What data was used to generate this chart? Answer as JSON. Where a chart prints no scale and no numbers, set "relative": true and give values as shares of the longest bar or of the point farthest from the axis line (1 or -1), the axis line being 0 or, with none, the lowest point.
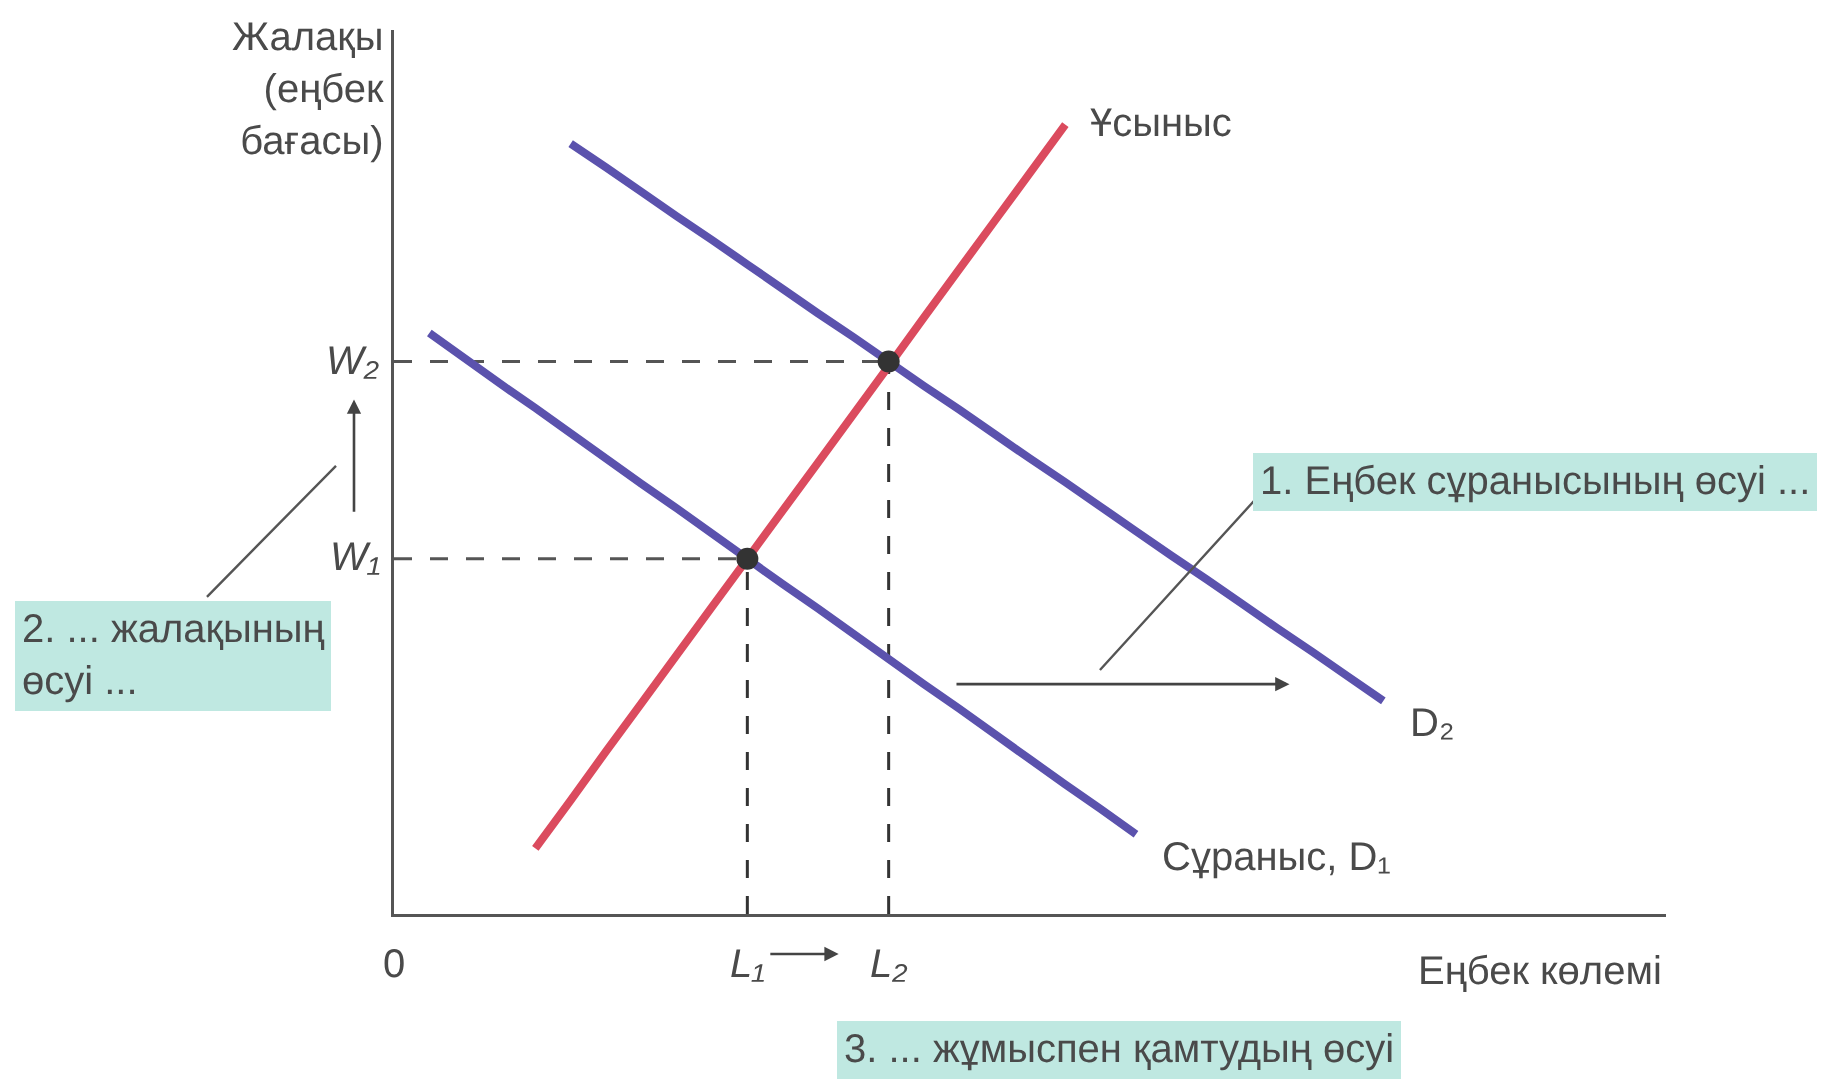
{
  "chart_data": {
    "type": "line",
    "relative": true,
    "legend": false,
    "xlabel": "Еңбек көлемі",
    "ylabel": "Жалақы\n(еңбек\nбағасы)",
    "categories": [
      "0",
      null,
      null,
      null,
      null,
      null,
      null,
      null,
      null,
      null,
      "L₁",
      null,
      null,
      null,
      "L₂",
      null,
      null,
      null,
      null,
      null,
      null,
      null,
      null,
      null,
      null,
      null,
      null,
      null,
      null,
      null,
      null,
      null,
      null,
      null,
      null,
      null,
      null
    ],
    "series": [
      {
        "name": "Ұсыныс",
        "color": "#db4b5e",
        "values": [
          null,
          null,
          null,
          null,
          0.083,
          0.144,
          0.206,
          0.267,
          0.328,
          0.389,
          0.45,
          0.511,
          0.572,
          0.633,
          0.694,
          0.756,
          0.817,
          0.878,
          0.939,
          1.0,
          null,
          null,
          null,
          null,
          null,
          null,
          null,
          null,
          null,
          null,
          null,
          null,
          null,
          null,
          null,
          null,
          null
        ]
      },
      {
        "name": "Сұраныс, D₁",
        "color": "#5b52ad",
        "values": [
          null,
          0.736,
          0.704,
          0.672,
          0.641,
          0.609,
          0.577,
          0.545,
          0.514,
          0.482,
          0.45,
          0.418,
          0.387,
          0.355,
          0.323,
          0.291,
          0.26,
          0.228,
          0.196,
          0.164,
          0.133,
          0.101,
          null,
          null,
          null,
          null,
          null,
          null,
          null,
          null,
          null,
          null,
          null,
          null,
          null,
          null,
          null
        ]
      },
      {
        "name": "D₂",
        "color": "#5b52ad",
        "values": [
          null,
          null,
          null,
          null,
          null,
          0.976,
          0.946,
          0.915,
          0.884,
          0.854,
          0.823,
          0.792,
          0.761,
          0.731,
          0.7,
          0.669,
          0.639,
          0.608,
          0.577,
          0.547,
          0.516,
          0.485,
          0.454,
          0.424,
          0.393,
          0.362,
          0.332,
          0.301,
          0.27,
          null,
          null,
          null,
          null,
          null,
          null,
          null,
          null
        ]
      },
      {
        "type": "lollipop",
        "color": "#333333",
        "marker": "circle",
        "line_style": "dashed",
        "values": [
          null,
          null,
          null,
          null,
          null,
          null,
          null,
          null,
          null,
          null,
          0.45,
          null,
          null,
          null,
          0.7,
          null,
          null,
          null,
          null,
          null,
          null,
          null,
          null,
          null,
          null,
          null,
          null,
          null,
          null,
          null,
          null,
          null,
          null,
          null,
          null,
          null,
          null
        ]
      }
    ],
    "ref_lines": [
      {
        "axis": "y",
        "value": 0.45,
        "label": "W₁",
        "color": "#555555",
        "line_style": "dashed"
      },
      {
        "axis": "y",
        "value": 0.7,
        "label": "W₂",
        "color": "#555555",
        "line_style": "dashed"
      }
    ],
    "annotations": [
      "1. Еңбек сұранысының өсуі ...",
      "2. ... жалақының\nөсуі ...",
      "3. ... жұмыспен қамтудың өсуі"
    ]
  }
}
